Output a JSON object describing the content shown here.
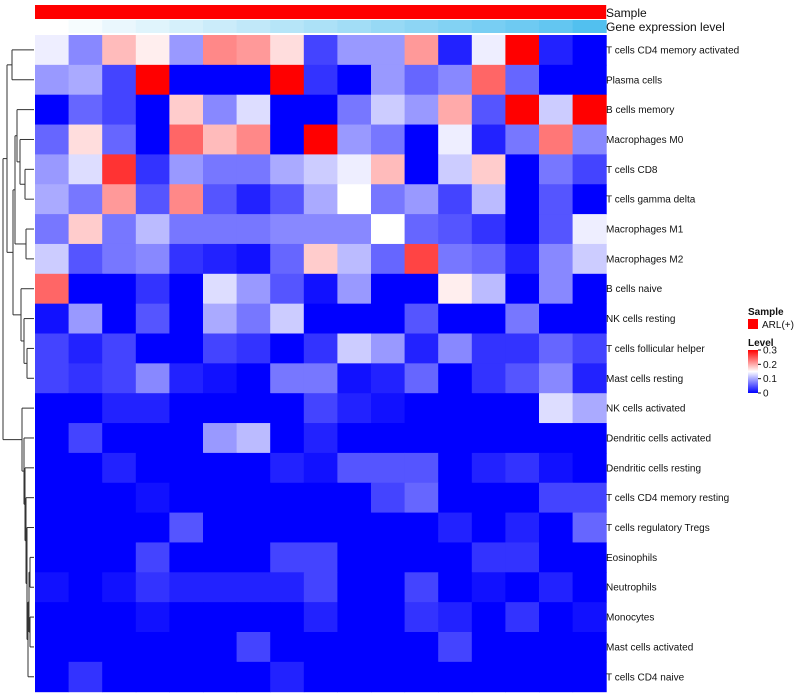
{
  "chart_data": {
    "type": "heatmap",
    "title": "",
    "rows": [
      "T cells CD4 memory activated",
      "Plasma cells",
      "B cells memory",
      "Macrophages M0",
      "T cells CD8",
      "T cells gamma delta",
      "Macrophages M1",
      "Macrophages M2",
      "B cells naive",
      "NK cells resting",
      "T cells follicular helper",
      "Mast cells resting",
      "NK cells activated",
      "Dendritic cells activated",
      "Dendritic cells resting",
      "T cells CD4 memory resting",
      "T cells regulatory  Tregs",
      "Eosinophils",
      "Neutrophils",
      "Monocytes",
      "Mast cells activated",
      "T cells CD4 naive"
    ],
    "n_columns": 17,
    "values": [
      [
        0.14,
        0.08,
        0.19,
        0.16,
        0.09,
        0.22,
        0.21,
        0.17,
        0.04,
        0.09,
        0.09,
        0.21,
        0.02,
        0.14,
        0.3,
        0.02,
        0.0
      ],
      [
        0.09,
        0.1,
        0.04,
        0.3,
        0.0,
        0.0,
        0.0,
        0.3,
        0.03,
        0.0,
        0.09,
        0.06,
        0.08,
        0.24,
        0.06,
        0.0,
        0.0
      ],
      [
        0.0,
        0.06,
        0.04,
        0.0,
        0.18,
        0.08,
        0.13,
        0.0,
        0.0,
        0.07,
        0.12,
        0.09,
        0.2,
        0.05,
        0.3,
        0.12,
        0.3
      ],
      [
        0.06,
        0.17,
        0.06,
        0.0,
        0.24,
        0.19,
        0.22,
        0.0,
        0.3,
        0.09,
        0.07,
        0.0,
        0.14,
        0.02,
        0.07,
        0.23,
        0.08
      ],
      [
        0.09,
        0.13,
        0.27,
        0.03,
        0.09,
        0.07,
        0.07,
        0.1,
        0.12,
        0.14,
        0.19,
        0.0,
        0.12,
        0.18,
        0.0,
        0.07,
        0.04
      ],
      [
        0.1,
        0.07,
        0.21,
        0.05,
        0.22,
        0.05,
        0.02,
        0.05,
        0.1,
        0.15,
        0.07,
        0.09,
        0.04,
        0.11,
        0.0,
        0.05,
        0.0
      ],
      [
        0.07,
        0.18,
        0.07,
        0.11,
        0.07,
        0.07,
        0.07,
        0.08,
        0.08,
        0.08,
        0.15,
        0.06,
        0.05,
        0.03,
        0.0,
        0.05,
        0.14
      ],
      [
        0.12,
        0.05,
        0.07,
        0.08,
        0.03,
        0.02,
        0.01,
        0.06,
        0.18,
        0.11,
        0.06,
        0.26,
        0.07,
        0.06,
        0.02,
        0.08,
        0.12
      ],
      [
        0.24,
        0.0,
        0.0,
        0.03,
        0.0,
        0.13,
        0.09,
        0.05,
        0.01,
        0.09,
        0.0,
        0.0,
        0.16,
        0.11,
        0.0,
        0.08,
        0.0
      ],
      [
        0.01,
        0.09,
        0.0,
        0.05,
        0.0,
        0.1,
        0.07,
        0.12,
        0.0,
        0.0,
        0.0,
        0.05,
        0.0,
        0.0,
        0.07,
        0.0,
        0.0
      ],
      [
        0.04,
        0.02,
        0.04,
        0.0,
        0.0,
        0.04,
        0.03,
        0.0,
        0.03,
        0.12,
        0.09,
        0.02,
        0.08,
        0.03,
        0.03,
        0.06,
        0.04
      ],
      [
        0.04,
        0.03,
        0.04,
        0.08,
        0.02,
        0.01,
        0.0,
        0.07,
        0.07,
        0.01,
        0.02,
        0.06,
        0.0,
        0.03,
        0.05,
        0.08,
        0.02
      ],
      [
        0.0,
        0.0,
        0.02,
        0.02,
        0.0,
        0.0,
        0.0,
        0.0,
        0.04,
        0.02,
        0.01,
        0.0,
        0.0,
        0.0,
        0.0,
        0.13,
        0.1
      ],
      [
        0.0,
        0.04,
        0.0,
        0.0,
        0.0,
        0.09,
        0.11,
        0.0,
        0.02,
        0.0,
        0.0,
        0.0,
        0.0,
        0.0,
        0.0,
        0.0,
        0.0
      ],
      [
        0.0,
        0.0,
        0.02,
        0.0,
        0.0,
        0.0,
        0.0,
        0.02,
        0.01,
        0.05,
        0.05,
        0.05,
        0.0,
        0.02,
        0.03,
        0.01,
        0.0
      ],
      [
        0.0,
        0.0,
        0.0,
        0.01,
        0.0,
        0.0,
        0.0,
        0.0,
        0.0,
        0.0,
        0.04,
        0.06,
        0.0,
        0.0,
        0.0,
        0.04,
        0.04
      ],
      [
        0.0,
        0.0,
        0.0,
        0.0,
        0.05,
        0.0,
        0.0,
        0.0,
        0.0,
        0.0,
        0.0,
        0.0,
        0.02,
        0.0,
        0.02,
        0.0,
        0.06
      ],
      [
        0.0,
        0.0,
        0.0,
        0.04,
        0.0,
        0.0,
        0.0,
        0.04,
        0.04,
        0.0,
        0.0,
        0.0,
        0.0,
        0.03,
        0.03,
        0.0,
        0.0
      ],
      [
        0.01,
        0.0,
        0.01,
        0.03,
        0.02,
        0.02,
        0.02,
        0.02,
        0.04,
        0.0,
        0.0,
        0.04,
        0.0,
        0.01,
        0.0,
        0.02,
        0.0
      ],
      [
        0.0,
        0.0,
        0.0,
        0.01,
        0.0,
        0.0,
        0.0,
        0.0,
        0.02,
        0.0,
        0.0,
        0.03,
        0.02,
        0.0,
        0.03,
        0.0,
        0.01
      ],
      [
        0.0,
        0.0,
        0.0,
        0.0,
        0.0,
        0.0,
        0.04,
        0.0,
        0.0,
        0.0,
        0.0,
        0.0,
        0.04,
        0.0,
        0.0,
        0.0,
        0.0
      ],
      [
        0.0,
        0.03,
        0.0,
        0.0,
        0.0,
        0.0,
        0.0,
        0.02,
        0.0,
        0.0,
        0.0,
        0.0,
        0.0,
        0.0,
        0.0,
        0.0,
        0.0
      ]
    ],
    "annotations": {
      "sample": {
        "label": "Sample",
        "value": "ARL(+)",
        "color": "#ff0000"
      },
      "gene_expression": {
        "label": "Gene expression level",
        "values": [
          0.0,
          0.05,
          0.12,
          0.18,
          0.24,
          0.3,
          0.36,
          0.42,
          0.48,
          0.54,
          0.6,
          0.66,
          0.72,
          0.78,
          0.84,
          0.9,
          1.0
        ],
        "color_low": "#ffffff",
        "color_high": "#52c0ef"
      }
    },
    "color_scale": {
      "colors": [
        "#0000ff",
        "#ffffff",
        "#ff0000"
      ],
      "min": 0,
      "mid": 0.15,
      "max": 0.3
    },
    "legend": {
      "sample_title": "Sample",
      "sample_entry": "ARL(+)",
      "level_title": "Level",
      "ticks": [
        {
          "value": 0.3,
          "label": "0.3"
        },
        {
          "value": 0.2,
          "label": "0.2"
        },
        {
          "value": 0.1,
          "label": "0.1"
        },
        {
          "value": 0.0,
          "label": "0"
        }
      ],
      "position": "right"
    },
    "dendrogram": "rows"
  }
}
